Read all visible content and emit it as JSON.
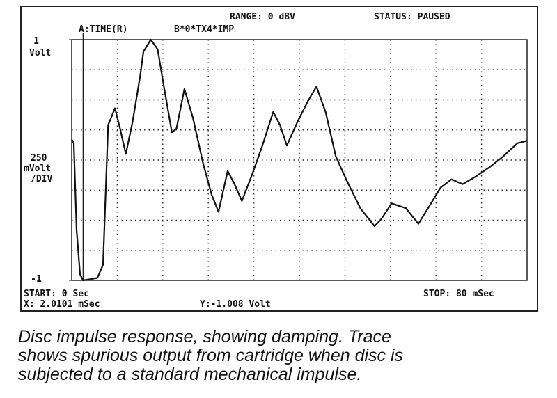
{
  "chart_data": {
    "type": "line",
    "header": [
      "RANGE: 0 dBV",
      "STATUS: PAUSED"
    ],
    "trace_labels": [
      "A:TIME(R)",
      "B*0*TX4*IMP"
    ],
    "y_unit": "Volt",
    "ylabel_lines": [
      "250",
      "mVolt",
      "/DIV"
    ],
    "footer": [
      "START: 0  Sec",
      "STOP: 80 mSec",
      "Y:-1.008  Volt"
    ],
    "cursor": {
      "x": 2.0101,
      "label": "X: 2.0101 mSec"
    },
    "xlim": [
      0,
      80
    ],
    "ylim": [
      -1,
      1
    ],
    "yticks": [
      -1,
      1
    ],
    "xgrid": [
      8,
      16,
      24,
      32,
      40,
      48,
      56,
      64,
      72
    ],
    "ygrid": [
      -0.75,
      -0.5,
      -0.25,
      0,
      0.25,
      0.5,
      0.75
    ],
    "grid": true,
    "series": [
      {
        "name": "B*0*TX4*IMP",
        "color": "#111111",
        "x": [
          0,
          0.37,
          0.86,
          1.47,
          2.0,
          4.5,
          5.5,
          6.4,
          7.6,
          8.5,
          9.5,
          10.7,
          12.0,
          12.6,
          13.9,
          15.1,
          16.3,
          17.6,
          18.4,
          19.8,
          21.3,
          23.1,
          24.6,
          25.8,
          27.4,
          28.6,
          29.9,
          31.7,
          33.5,
          35.4,
          36.6,
          37.8,
          39.7,
          41.5,
          43.0,
          44.6,
          46.4,
          48.3,
          50.7,
          53.2,
          54.4,
          56.2,
          58.7,
          60.9,
          62.6,
          64.8,
          66.7,
          68.7,
          70.9,
          73.4,
          75.8,
          78.3,
          80
        ],
        "values": [
          0.17,
          0.14,
          -0.58,
          -0.95,
          -1.0,
          -0.98,
          -0.87,
          0.29,
          0.43,
          0.26,
          0.05,
          0.32,
          0.69,
          0.9,
          1.0,
          0.92,
          0.58,
          0.23,
          0.26,
          0.59,
          0.35,
          -0.03,
          -0.29,
          -0.43,
          -0.09,
          -0.2,
          -0.34,
          -0.12,
          0.12,
          0.4,
          0.29,
          0.12,
          0.32,
          0.49,
          0.61,
          0.4,
          0.03,
          -0.17,
          -0.4,
          -0.55,
          -0.49,
          -0.36,
          -0.4,
          -0.53,
          -0.4,
          -0.23,
          -0.16,
          -0.2,
          -0.14,
          -0.06,
          0.03,
          0.14,
          0.16
        ]
      }
    ]
  },
  "caption": [
    "Disc impulse response, showing damping. Trace",
    "shows spurious output from cartridge when disc is",
    "subjected to a standard mechanical impulse."
  ]
}
